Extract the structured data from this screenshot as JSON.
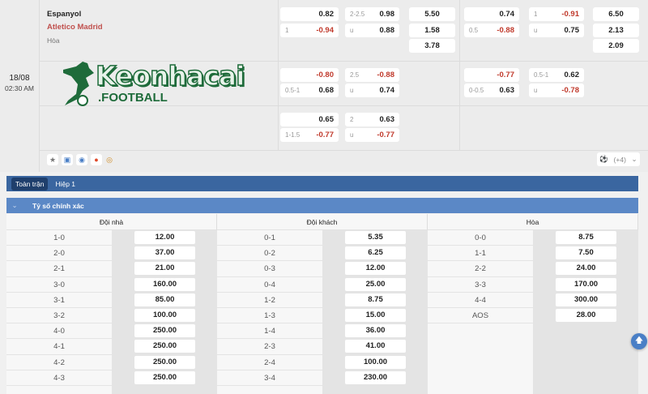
{
  "match": {
    "date": "18/08",
    "time": "02:30 AM",
    "home": "Espanyol",
    "away": "Atletico Madrid",
    "draw": "Hòa",
    "more_label": "(+4)",
    "footer_icons": [
      "star-icon",
      "bus-icon",
      "eye-icon",
      "fire-icon",
      "medal-icon"
    ]
  },
  "watermark": {
    "brand": "Keonhacai",
    "sub": ".FOOTBALL",
    "color": "#1e6b3a"
  },
  "odds_rows": [
    {
      "b1": {
        "hdp": [
          [
            "",
            "0.82"
          ],
          [
            "1",
            "-0.94"
          ]
        ],
        "ou": [
          [
            "2-2.5",
            "0.98"
          ],
          [
            "u",
            "0.88"
          ]
        ],
        "x12": [
          "5.50",
          "1.58",
          "3.78"
        ]
      },
      "b2": {
        "hdp": [
          [
            "",
            "0.74"
          ],
          [
            "0.5",
            "-0.88"
          ]
        ],
        "ou": [
          [
            "1",
            "-0.91"
          ],
          [
            "u",
            "0.75"
          ]
        ],
        "x12": [
          "6.50",
          "2.13",
          "2.09"
        ]
      }
    },
    {
      "b1": {
        "hdp": [
          [
            "",
            "-0.80"
          ],
          [
            "0.5-1",
            "0.68"
          ]
        ],
        "ou": [
          [
            "2.5",
            "-0.88"
          ],
          [
            "u",
            "0.74"
          ]
        ],
        "x12": []
      },
      "b2": {
        "hdp": [
          [
            "",
            "-0.77"
          ],
          [
            "0-0.5",
            "0.63"
          ]
        ],
        "ou": [
          [
            "0.5-1",
            "0.62"
          ],
          [
            "u",
            "-0.78"
          ]
        ],
        "x12": []
      }
    },
    {
      "b1": {
        "hdp": [
          [
            "",
            "0.65"
          ],
          [
            "1-1.5",
            "-0.77"
          ]
        ],
        "ou": [
          [
            "2",
            "0.63"
          ],
          [
            "u",
            "-0.77"
          ]
        ],
        "x12": []
      },
      "b2": {
        "hdp": [],
        "ou": [],
        "x12": []
      }
    }
  ],
  "tabs": [
    {
      "label": "Toàn trận",
      "active": true
    },
    {
      "label": "Hiệp 1",
      "active": false
    }
  ],
  "section": {
    "title": "Tỷ số chính xác"
  },
  "score_columns": [
    {
      "title": "Đội nhà",
      "rows": [
        [
          "1-0",
          "12.00"
        ],
        [
          "2-0",
          "37.00"
        ],
        [
          "2-1",
          "21.00"
        ],
        [
          "3-0",
          "160.00"
        ],
        [
          "3-1",
          "85.00"
        ],
        [
          "3-2",
          "100.00"
        ],
        [
          "4-0",
          "250.00"
        ],
        [
          "4-1",
          "250.00"
        ],
        [
          "4-2",
          "250.00"
        ],
        [
          "4-3",
          "250.00"
        ]
      ]
    },
    {
      "title": "Đội khách",
      "rows": [
        [
          "0-1",
          "5.35"
        ],
        [
          "0-2",
          "6.25"
        ],
        [
          "0-3",
          "12.00"
        ],
        [
          "0-4",
          "25.00"
        ],
        [
          "1-2",
          "8.75"
        ],
        [
          "1-3",
          "15.00"
        ],
        [
          "1-4",
          "36.00"
        ],
        [
          "2-3",
          "41.00"
        ],
        [
          "2-4",
          "100.00"
        ],
        [
          "3-4",
          "230.00"
        ]
      ]
    },
    {
      "title": "Hòa",
      "rows": [
        [
          "0-0",
          "8.75"
        ],
        [
          "1-1",
          "7.50"
        ],
        [
          "2-2",
          "24.00"
        ],
        [
          "3-3",
          "170.00"
        ],
        [
          "4-4",
          "300.00"
        ],
        [
          "AOS",
          "28.00"
        ]
      ]
    }
  ]
}
